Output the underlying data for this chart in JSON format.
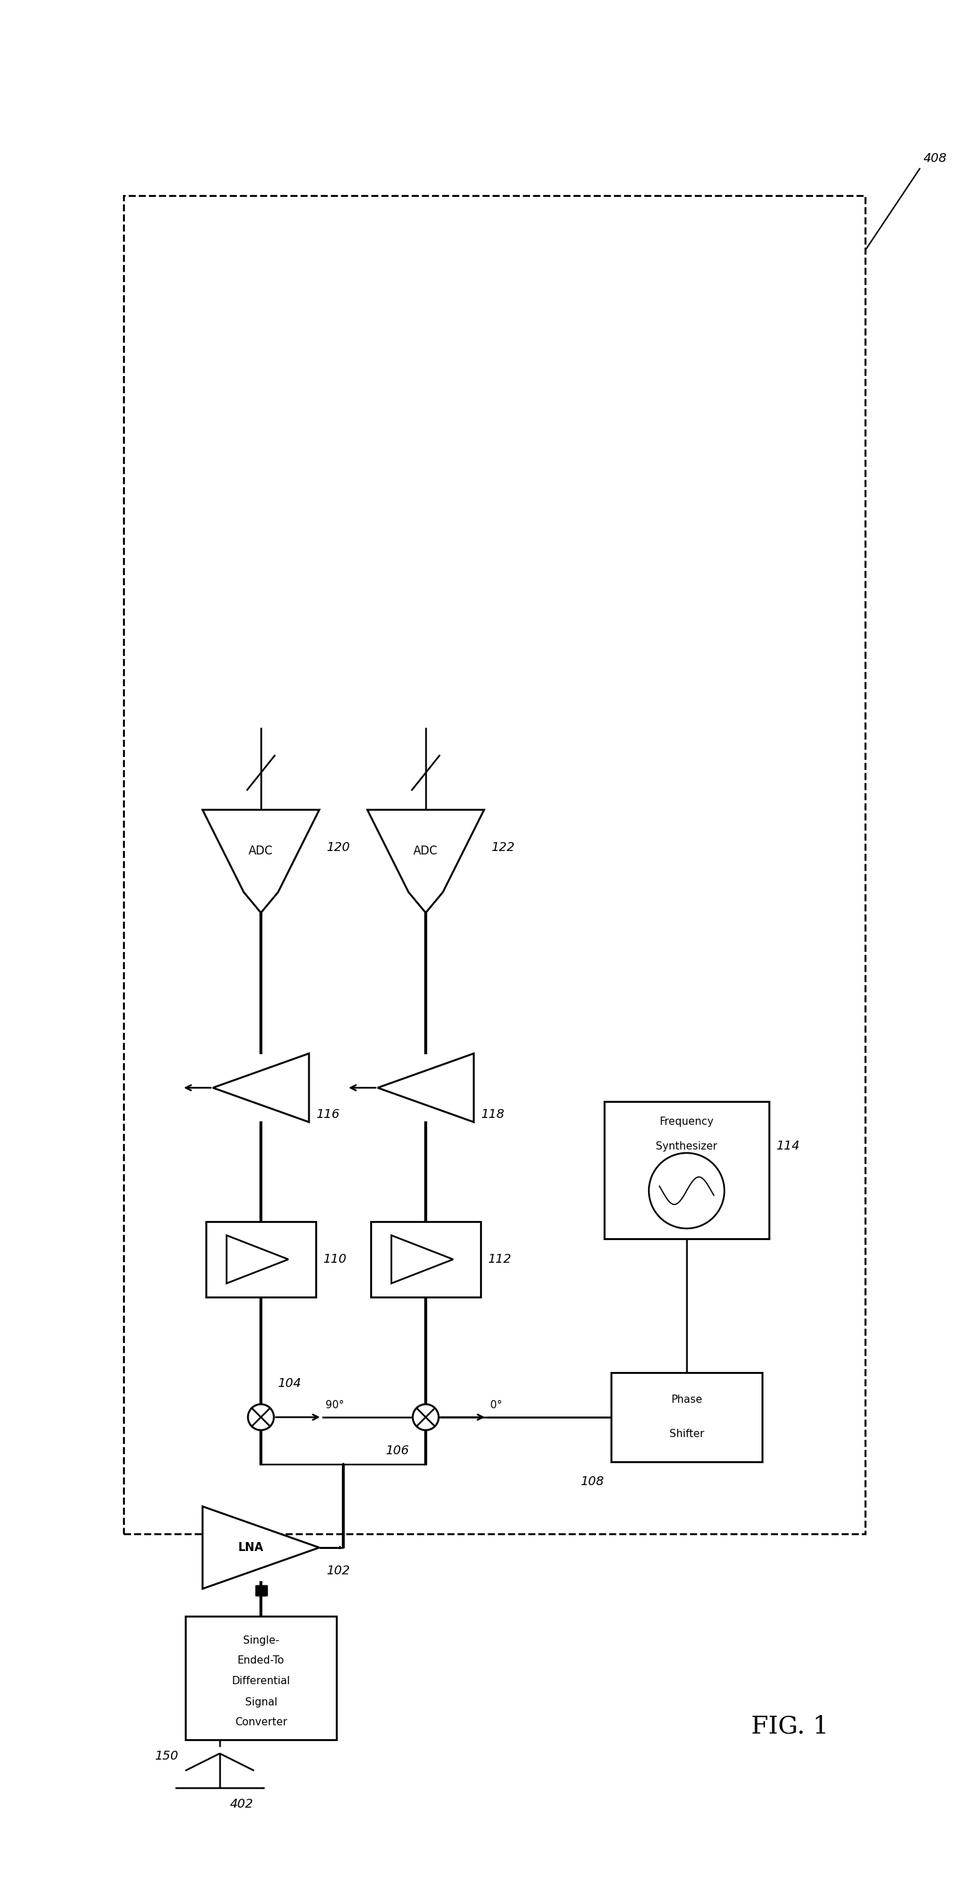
{
  "fig_width": 14.2,
  "fig_height": 27.35,
  "bg_color": "#ffffff",
  "line_color": "#000000",
  "fig_label": "FIG. 1",
  "label_408": "408",
  "label_402": "402",
  "label_150": "150",
  "label_102": "102",
  "label_104": "104",
  "label_106": "106",
  "label_108": "108",
  "label_110": "110",
  "label_112": "112",
  "label_114": "114",
  "label_116": "116",
  "label_118": "118",
  "label_120": "120",
  "label_122": "122",
  "lw_main": 1.8,
  "lw_thick": 2.0,
  "lw_double": 1.6,
  "lw_dashed": 2.0,
  "fs_label": 13,
  "fs_component": 11,
  "fs_fig": 26,
  "fs_small": 10,
  "dot_r": 0.07,
  "mix_r": 0.42,
  "double_sep": 0.1
}
